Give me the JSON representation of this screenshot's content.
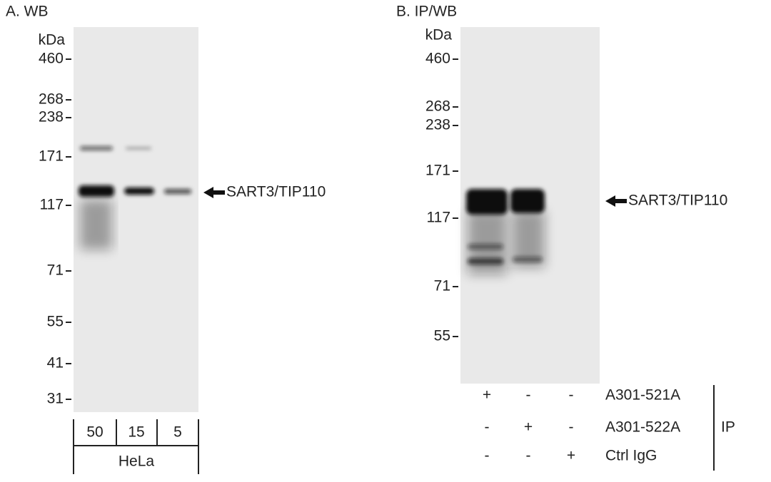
{
  "panels": [
    {
      "title": "A. WB",
      "unit": "kDa",
      "markers": [
        "460",
        "268",
        "238",
        "171",
        "117",
        "71",
        "55",
        "41",
        "31"
      ],
      "target": "SART3/TIP110",
      "lanes": [
        "50",
        "15",
        "5"
      ],
      "sample": "HeLa"
    },
    {
      "title": "B. IP/WB",
      "unit": "kDa",
      "markers": [
        "460",
        "268",
        "238",
        "171",
        "117",
        "71",
        "55"
      ],
      "target": "SART3/TIP110",
      "ip_rows": [
        {
          "label": "A301-521A",
          "signs": [
            "+",
            "-",
            "-"
          ]
        },
        {
          "label": "A301-522A",
          "signs": [
            "-",
            "+",
            "-"
          ]
        },
        {
          "label": "Ctrl IgG",
          "signs": [
            "-",
            "-",
            "+"
          ]
        }
      ],
      "ip_label": "IP"
    }
  ]
}
